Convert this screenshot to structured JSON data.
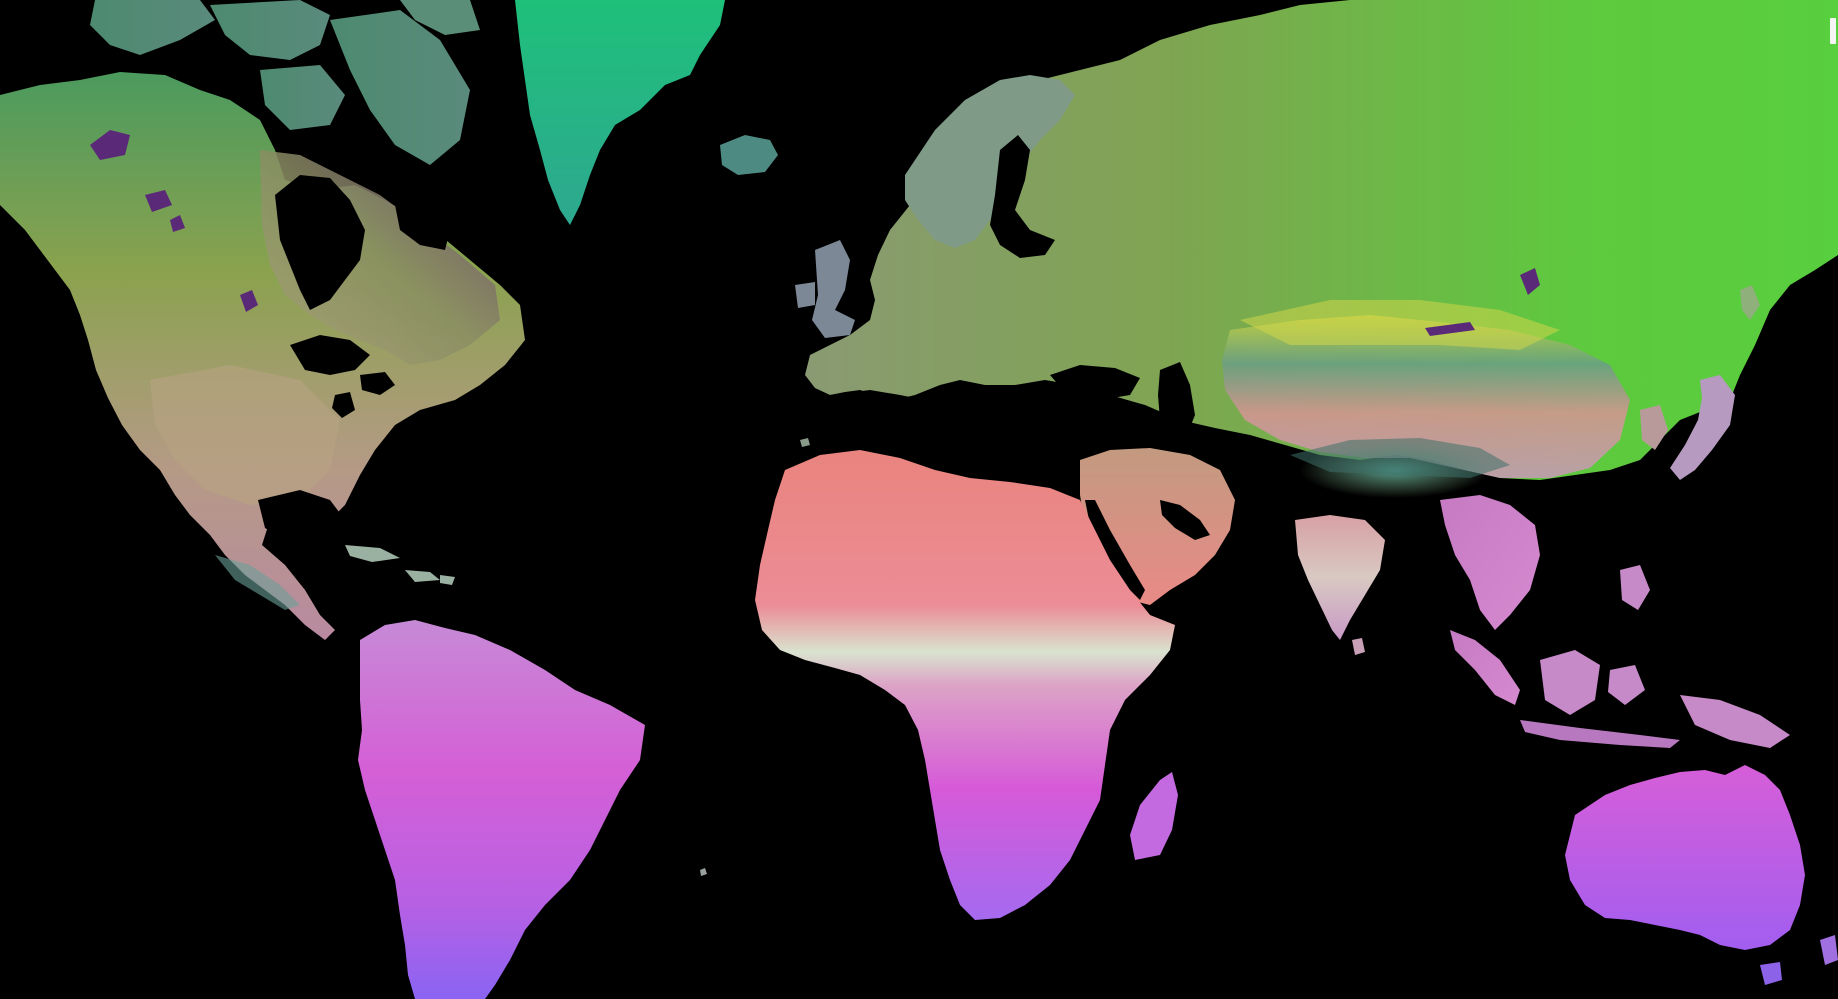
{
  "map": {
    "background_color": "#000000",
    "palette": {
      "boreal_green": "#3fdc3a",
      "temperate_olive": "#8da84a",
      "arid_salmon": "#ea8a86",
      "sahel_pale": "#d9e6cf",
      "tropical_magenta": "#d64fd8",
      "tropical_violet": "#9a5cf0",
      "greenland_green": "#1ebf78",
      "arctic_teal": "#4f8f7a",
      "himalaya_teal": "#5a9a8c",
      "lake_purple": "#5a2a78"
    }
  }
}
